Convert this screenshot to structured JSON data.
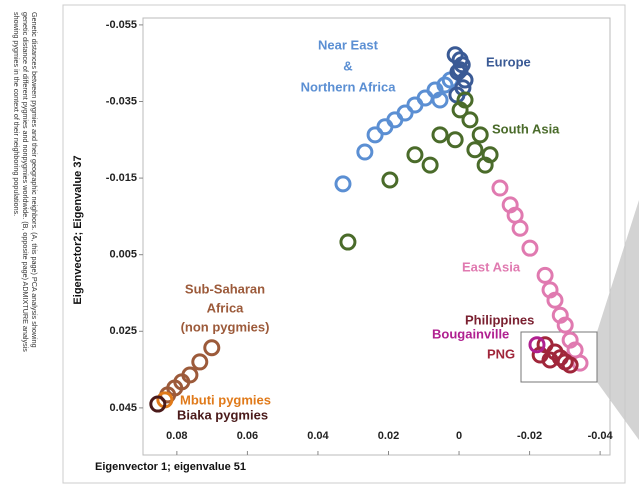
{
  "caption": [
    "Genetic distances between pygmies and their geographic neighbors. (A, this page) PCA analysis showing",
    "genetic distance of different pygmies and nonpygmies worldwide. (B, opposite page) ADMIXTURE analysis",
    "showing pygmies in the context of their neighboring populations."
  ],
  "chart_data": {
    "type": "scatter",
    "x_label": "Eigenvector 1;  eigenvalue 51",
    "y_label": "Eigenvector2; Eigenvalue 37",
    "xlim": [
      0.0896,
      -0.0428
    ],
    "xticks": [
      0.08,
      0.06,
      0.04,
      0.02,
      0,
      -0.02,
      -0.04
    ],
    "ylim": [
      -0.0568,
      0.0573
    ],
    "yticks": [
      -0.055,
      -0.035,
      -0.015,
      0.005,
      0.025,
      0.045
    ],
    "annotations": [
      "Near East",
      "&",
      "Northern Africa",
      "Europe",
      "South Asia",
      "East Asia",
      "Philippines",
      "Bougainville",
      "PNG",
      "Sub-Saharan",
      "Africa",
      "(non pygmies)",
      "Mbuti pygmies",
      "Biaka pygmies"
    ],
    "series": [
      {
        "color": "#5b8fd3",
        "x": [
          0.0329,
          0.0267,
          0.0238,
          0.021,
          0.0182,
          0.0153,
          0.0125,
          0.0096,
          0.0068,
          0.004,
          0.0025,
          0.0054
        ],
        "y": [
          -0.0135,
          -0.0218,
          -0.0263,
          -0.0284,
          -0.0302,
          -0.032,
          -0.0341,
          -0.0359,
          -0.038,
          -0.0393,
          -0.0406,
          -0.0354
        ]
      },
      {
        "color": "#3a5a95",
        "x": [
          0.0011,
          -0.0003,
          -0.0009,
          0.0003,
          -0.0017,
          -0.0011,
          0.0006,
          -0.0003
        ],
        "y": [
          -0.0472,
          -0.0459,
          -0.0446,
          -0.0427,
          -0.0406,
          -0.0386,
          -0.0367,
          -0.0433
        ]
      },
      {
        "color": "#4a6b2a",
        "x": [
          0.0315,
          0.0196,
          0.0125,
          0.0082,
          0.0054,
          -0.0003,
          -0.0031,
          -0.006,
          -0.0088,
          -0.0045,
          -0.0017,
          0.0011,
          -0.0074
        ],
        "y": [
          0.0017,
          -0.0145,
          -0.0211,
          -0.0184,
          -0.0263,
          -0.0328,
          -0.0302,
          -0.0263,
          -0.0211,
          -0.0224,
          -0.0354,
          -0.025,
          -0.0184
        ]
      },
      {
        "color": "#e07ab0",
        "x": [
          -0.0116,
          -0.0145,
          -0.0159,
          -0.0173,
          -0.0201,
          -0.0244,
          -0.0258,
          -0.0272,
          -0.0287,
          -0.0301,
          -0.0315,
          -0.0329,
          -0.0343
        ],
        "y": [
          -0.0124,
          -0.008,
          -0.0053,
          -0.0019,
          0.0033,
          0.0104,
          0.0142,
          0.0169,
          0.0208,
          0.0234,
          0.0273,
          0.0299,
          0.0333
        ]
      },
      {
        "color": "#a0263a",
        "x": [
          -0.0244,
          -0.0272,
          -0.0287,
          -0.0301,
          -0.0315,
          -0.0258,
          -0.023
        ],
        "y": [
          0.0285,
          0.0304,
          0.0319,
          0.033,
          0.0338,
          0.0325,
          0.0312
        ]
      },
      {
        "color": "#b02090",
        "x": [
          -0.0221
        ],
        "y": [
          0.0285
        ]
      },
      {
        "color": "#9c5a3a",
        "x": [
          0.0701,
          0.0735,
          0.0763,
          0.0786,
          0.0806,
          0.0826
        ],
        "y": [
          0.0293,
          0.033,
          0.0364,
          0.0382,
          0.0398,
          0.0416
        ]
      },
      {
        "color": "#e07a1a",
        "x": [
          0.0834
        ],
        "y": [
          0.0429
        ]
      },
      {
        "color": "#4a1a1a",
        "x": [
          0.0854
        ],
        "y": [
          0.044
        ]
      }
    ]
  }
}
